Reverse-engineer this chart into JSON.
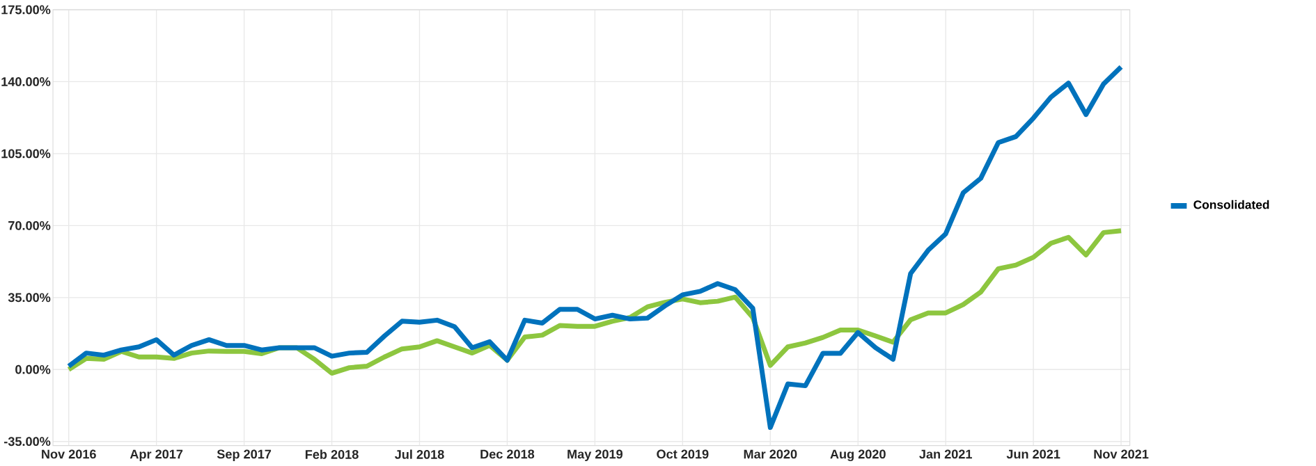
{
  "chart_data": {
    "type": "line",
    "x": [
      "2016-11",
      "2016-12",
      "2017-01",
      "2017-02",
      "2017-03",
      "2017-04",
      "2017-05",
      "2017-06",
      "2017-07",
      "2017-08",
      "2017-09",
      "2017-10",
      "2017-11",
      "2017-12",
      "2018-01",
      "2018-02",
      "2018-03",
      "2018-04",
      "2018-05",
      "2018-06",
      "2018-07",
      "2018-08",
      "2018-09",
      "2018-10",
      "2018-11",
      "2018-12",
      "2019-01",
      "2019-02",
      "2019-03",
      "2019-04",
      "2019-05",
      "2019-06",
      "2019-07",
      "2019-08",
      "2019-09",
      "2019-10",
      "2019-11",
      "2019-12",
      "2020-01",
      "2020-02",
      "2020-03",
      "2020-04",
      "2020-05",
      "2020-06",
      "2020-07",
      "2020-08",
      "2020-09",
      "2020-10",
      "2020-11",
      "2020-12",
      "2021-01",
      "2021-02",
      "2021-03",
      "2021-04",
      "2021-05",
      "2021-06",
      "2021-07",
      "2021-08",
      "2021-09",
      "2021-10",
      "2021-11"
    ],
    "series": [
      {
        "color": "#8dc63f",
        "values": [
          0,
          5.4,
          5,
          8.8,
          6.1,
          6.1,
          5.4,
          8,
          9,
          8.8,
          8.8,
          7.7,
          10.6,
          10.6,
          5,
          -1.8,
          0.9,
          1.6,
          6.1,
          10,
          11,
          14,
          11,
          8,
          11.7,
          4.5,
          15.8,
          16.7,
          21.4,
          21,
          21,
          23.5,
          25.3,
          30.5,
          32.7,
          34.3,
          32.5,
          33.2,
          35.2,
          25.3,
          2,
          11,
          12.9,
          15.6,
          19.2,
          19.2,
          16.3,
          13.3,
          24.2,
          27.5,
          27.5,
          31.6,
          37.7,
          49,
          50.8,
          54.6,
          61.4,
          64.3,
          55.7,
          66.6,
          67.5
        ]
      },
      {
        "name": "Consolidated",
        "color": "#0072bc",
        "values": [
          1.6,
          8,
          7,
          9.5,
          11,
          14.5,
          7,
          11.7,
          14.5,
          11.7,
          11.7,
          9.5,
          10.6,
          10.6,
          10.6,
          6.5,
          8,
          8.4,
          16.3,
          23.5,
          23,
          24,
          20.8,
          10.6,
          13.5,
          4.5,
          24,
          22.6,
          29.3,
          29.3,
          24.6,
          26.4,
          24.6,
          25,
          31,
          36.3,
          38,
          41.8,
          38.8,
          29.8,
          -28.2,
          -7,
          -7.9,
          7.9,
          7.9,
          18,
          10.6,
          5,
          46.7,
          58,
          66,
          86,
          93,
          110.4,
          113.3,
          122.3,
          132.5,
          139.3,
          124,
          138.9,
          147.2
        ]
      }
    ],
    "xlim": [
      "2016-10-05",
      "2021-11-15"
    ],
    "xticks": [
      {
        "value": "2016-11",
        "label": "Nov 2016"
      },
      {
        "value": "2017-04",
        "label": "Apr 2017"
      },
      {
        "value": "2017-09",
        "label": "Sep 2017"
      },
      {
        "value": "2018-02",
        "label": "Feb 2018"
      },
      {
        "value": "2018-07",
        "label": "Jul 2018"
      },
      {
        "value": "2018-12",
        "label": "Dec 2018"
      },
      {
        "value": "2019-05",
        "label": "May 2019"
      },
      {
        "value": "2019-10",
        "label": "Oct 2019"
      },
      {
        "value": "2020-03",
        "label": "Mar 2020"
      },
      {
        "value": "2020-08",
        "label": "Aug 2020"
      },
      {
        "value": "2021-01",
        "label": "Jan 2021"
      },
      {
        "value": "2021-06",
        "label": "Jun 2021"
      },
      {
        "value": "2021-11",
        "label": "Nov 2021"
      }
    ],
    "ylim": [
      -37,
      175
    ],
    "yticks": [
      {
        "value": -35,
        "label": "-35.00%"
      },
      {
        "value": 0,
        "label": "0.00%"
      },
      {
        "value": 35,
        "label": "35.00%"
      },
      {
        "value": 70,
        "label": "70.00%"
      },
      {
        "value": 105,
        "label": "105.00%"
      },
      {
        "value": 140,
        "label": "140.00%"
      },
      {
        "value": 175,
        "label": "175.00%"
      }
    ],
    "grid": true,
    "legend": "right",
    "marker": "none",
    "line_style": "solid"
  }
}
